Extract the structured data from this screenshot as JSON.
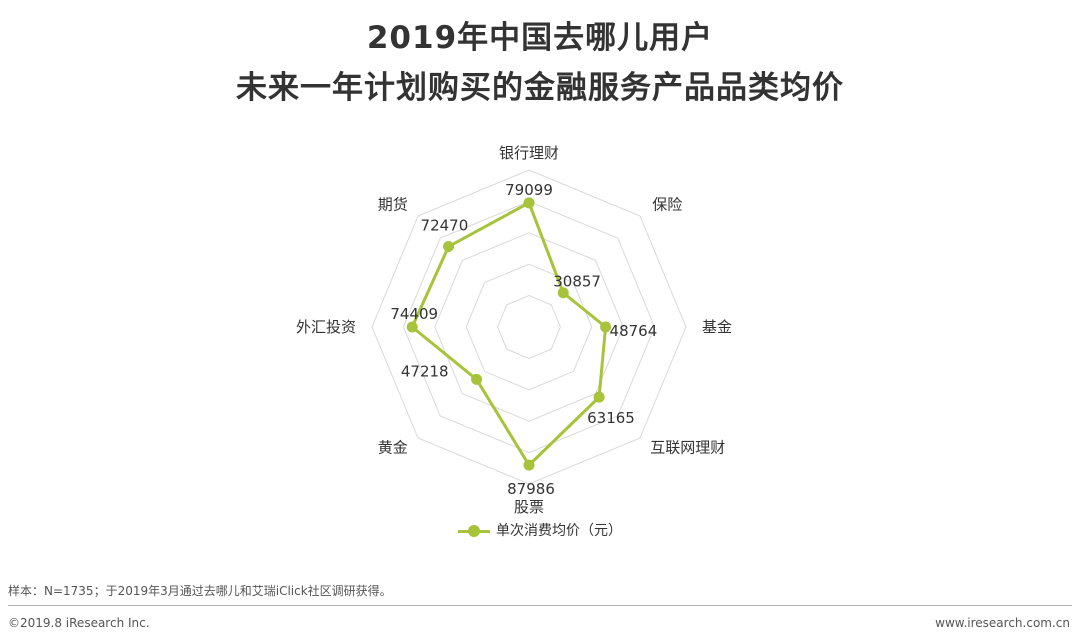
{
  "title_line1": "2019年中国去哪儿用户",
  "title_line2": "未来一年计划购买的金融服务产品品类均价",
  "chart_data": {
    "type": "radar",
    "categories": [
      "银行理财",
      "保险",
      "基金",
      "互联网理财",
      "股票",
      "黄金",
      "外汇投资",
      "期货"
    ],
    "series": [
      {
        "name": "单次消费均价（元）",
        "values": [
          79099,
          30857,
          48764,
          63165,
          87986,
          47218,
          74409,
          72470
        ],
        "color": "#a6c33a"
      }
    ],
    "rmax": 100000,
    "grid_levels": 5
  },
  "legend_label": "单次消费均价（元）",
  "note": "样本：N=1735；于2019年3月通过去哪儿和艾瑞iClick社区调研获得。",
  "footer_left": "©2019.8 iResearch Inc.",
  "footer_right": "www.iresearch.com.cn"
}
